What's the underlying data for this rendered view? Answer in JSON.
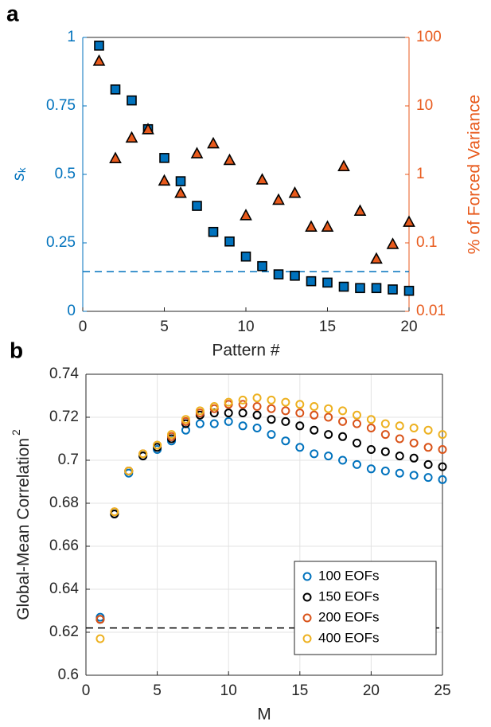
{
  "chart_data": [
    {
      "type": "scatter",
      "panel_label": "a",
      "xlabel": "Pattern #",
      "ylabel": {
        "text": "s",
        "subscript": "k"
      },
      "y2label": "% of Forced Variance",
      "x": [
        1,
        2,
        3,
        4,
        5,
        6,
        7,
        8,
        9,
        10,
        11,
        12,
        13,
        14,
        15,
        16,
        17,
        18,
        19,
        20
      ],
      "xlim": [
        0,
        20
      ],
      "xticks": [
        0,
        5,
        10,
        15,
        20
      ],
      "ylim": [
        0,
        1
      ],
      "yticks": [
        0,
        0.25,
        0.5,
        0.75,
        1
      ],
      "y2lim": [
        0.01,
        100
      ],
      "y2ticks": [
        0.01,
        0.1,
        1,
        10,
        100
      ],
      "y2scale": "log",
      "axis_color": "#0072bd",
      "y2_axis_color": "#e85a1c",
      "grid": false,
      "hline": {
        "value": 0.145,
        "color": "#0072bd",
        "style": "dashed"
      },
      "series": [
        {
          "marker": "square",
          "color": "#0072bd",
          "values": [
            0.97,
            0.81,
            0.77,
            0.665,
            0.56,
            0.475,
            0.385,
            0.29,
            0.255,
            0.2,
            0.165,
            0.135,
            0.13,
            0.11,
            0.105,
            0.09,
            0.085,
            0.085,
            0.08,
            0.075
          ]
        },
        {
          "marker": "triangle",
          "color": "#e85a1c",
          "axis": "y2",
          "values": [
            45,
            1.7,
            3.4,
            4.5,
            0.8,
            0.53,
            2.0,
            2.8,
            1.6,
            0.25,
            0.83,
            0.42,
            0.53,
            0.17,
            0.17,
            1.3,
            0.29,
            0.058,
            0.095,
            0.2
          ]
        }
      ]
    },
    {
      "type": "scatter",
      "panel_label": "b",
      "xlabel": "M",
      "ylabel": {
        "text": "Global-Mean Correlation",
        "superscript": "2"
      },
      "x": [
        1,
        2,
        3,
        4,
        5,
        6,
        7,
        8,
        9,
        10,
        11,
        12,
        13,
        14,
        15,
        16,
        17,
        18,
        19,
        20,
        21,
        22,
        23,
        24,
        25
      ],
      "xlim": [
        0,
        25
      ],
      "xticks": [
        0,
        5,
        10,
        15,
        20,
        25
      ],
      "ylim": [
        0.6,
        0.74
      ],
      "yticks": [
        0.6,
        0.62,
        0.64,
        0.66,
        0.68,
        0.7,
        0.72,
        0.74
      ],
      "axis_color": "#262626",
      "grid": true,
      "legend": "lower right",
      "hline": {
        "value": 0.622,
        "color": "#000000",
        "style": "dashed"
      },
      "series": [
        {
          "name": "100 EOFs",
          "marker": "circle",
          "color": "#0072bd",
          "values": [
            0.627,
            0.675,
            0.694,
            0.702,
            0.705,
            0.709,
            0.714,
            0.717,
            0.717,
            0.718,
            0.716,
            0.715,
            0.712,
            0.709,
            0.706,
            0.703,
            0.702,
            0.7,
            0.698,
            0.696,
            0.695,
            0.694,
            0.693,
            0.692,
            0.691
          ]
        },
        {
          "name": "150 EOFs",
          "marker": "circle",
          "color": "#000000",
          "values": [
            0.626,
            0.675,
            0.695,
            0.702,
            0.706,
            0.71,
            0.717,
            0.721,
            0.722,
            0.722,
            0.722,
            0.721,
            0.719,
            0.718,
            0.716,
            0.714,
            0.712,
            0.711,
            0.708,
            0.705,
            0.704,
            0.702,
            0.701,
            0.698,
            0.697
          ]
        },
        {
          "name": "200 EOFs",
          "marker": "circle",
          "color": "#d95319",
          "values": [
            0.626,
            0.676,
            0.695,
            0.703,
            0.707,
            0.711,
            0.718,
            0.722,
            0.724,
            0.726,
            0.726,
            0.725,
            0.724,
            0.723,
            0.722,
            0.721,
            0.72,
            0.718,
            0.717,
            0.715,
            0.712,
            0.71,
            0.708,
            0.706,
            0.705
          ]
        },
        {
          "name": "400 EOFs",
          "marker": "circle",
          "color": "#edb120",
          "values": [
            0.617,
            0.676,
            0.695,
            0.703,
            0.707,
            0.712,
            0.719,
            0.723,
            0.725,
            0.727,
            0.728,
            0.729,
            0.728,
            0.727,
            0.726,
            0.725,
            0.724,
            0.723,
            0.721,
            0.719,
            0.717,
            0.716,
            0.715,
            0.714,
            0.712
          ]
        }
      ]
    }
  ]
}
